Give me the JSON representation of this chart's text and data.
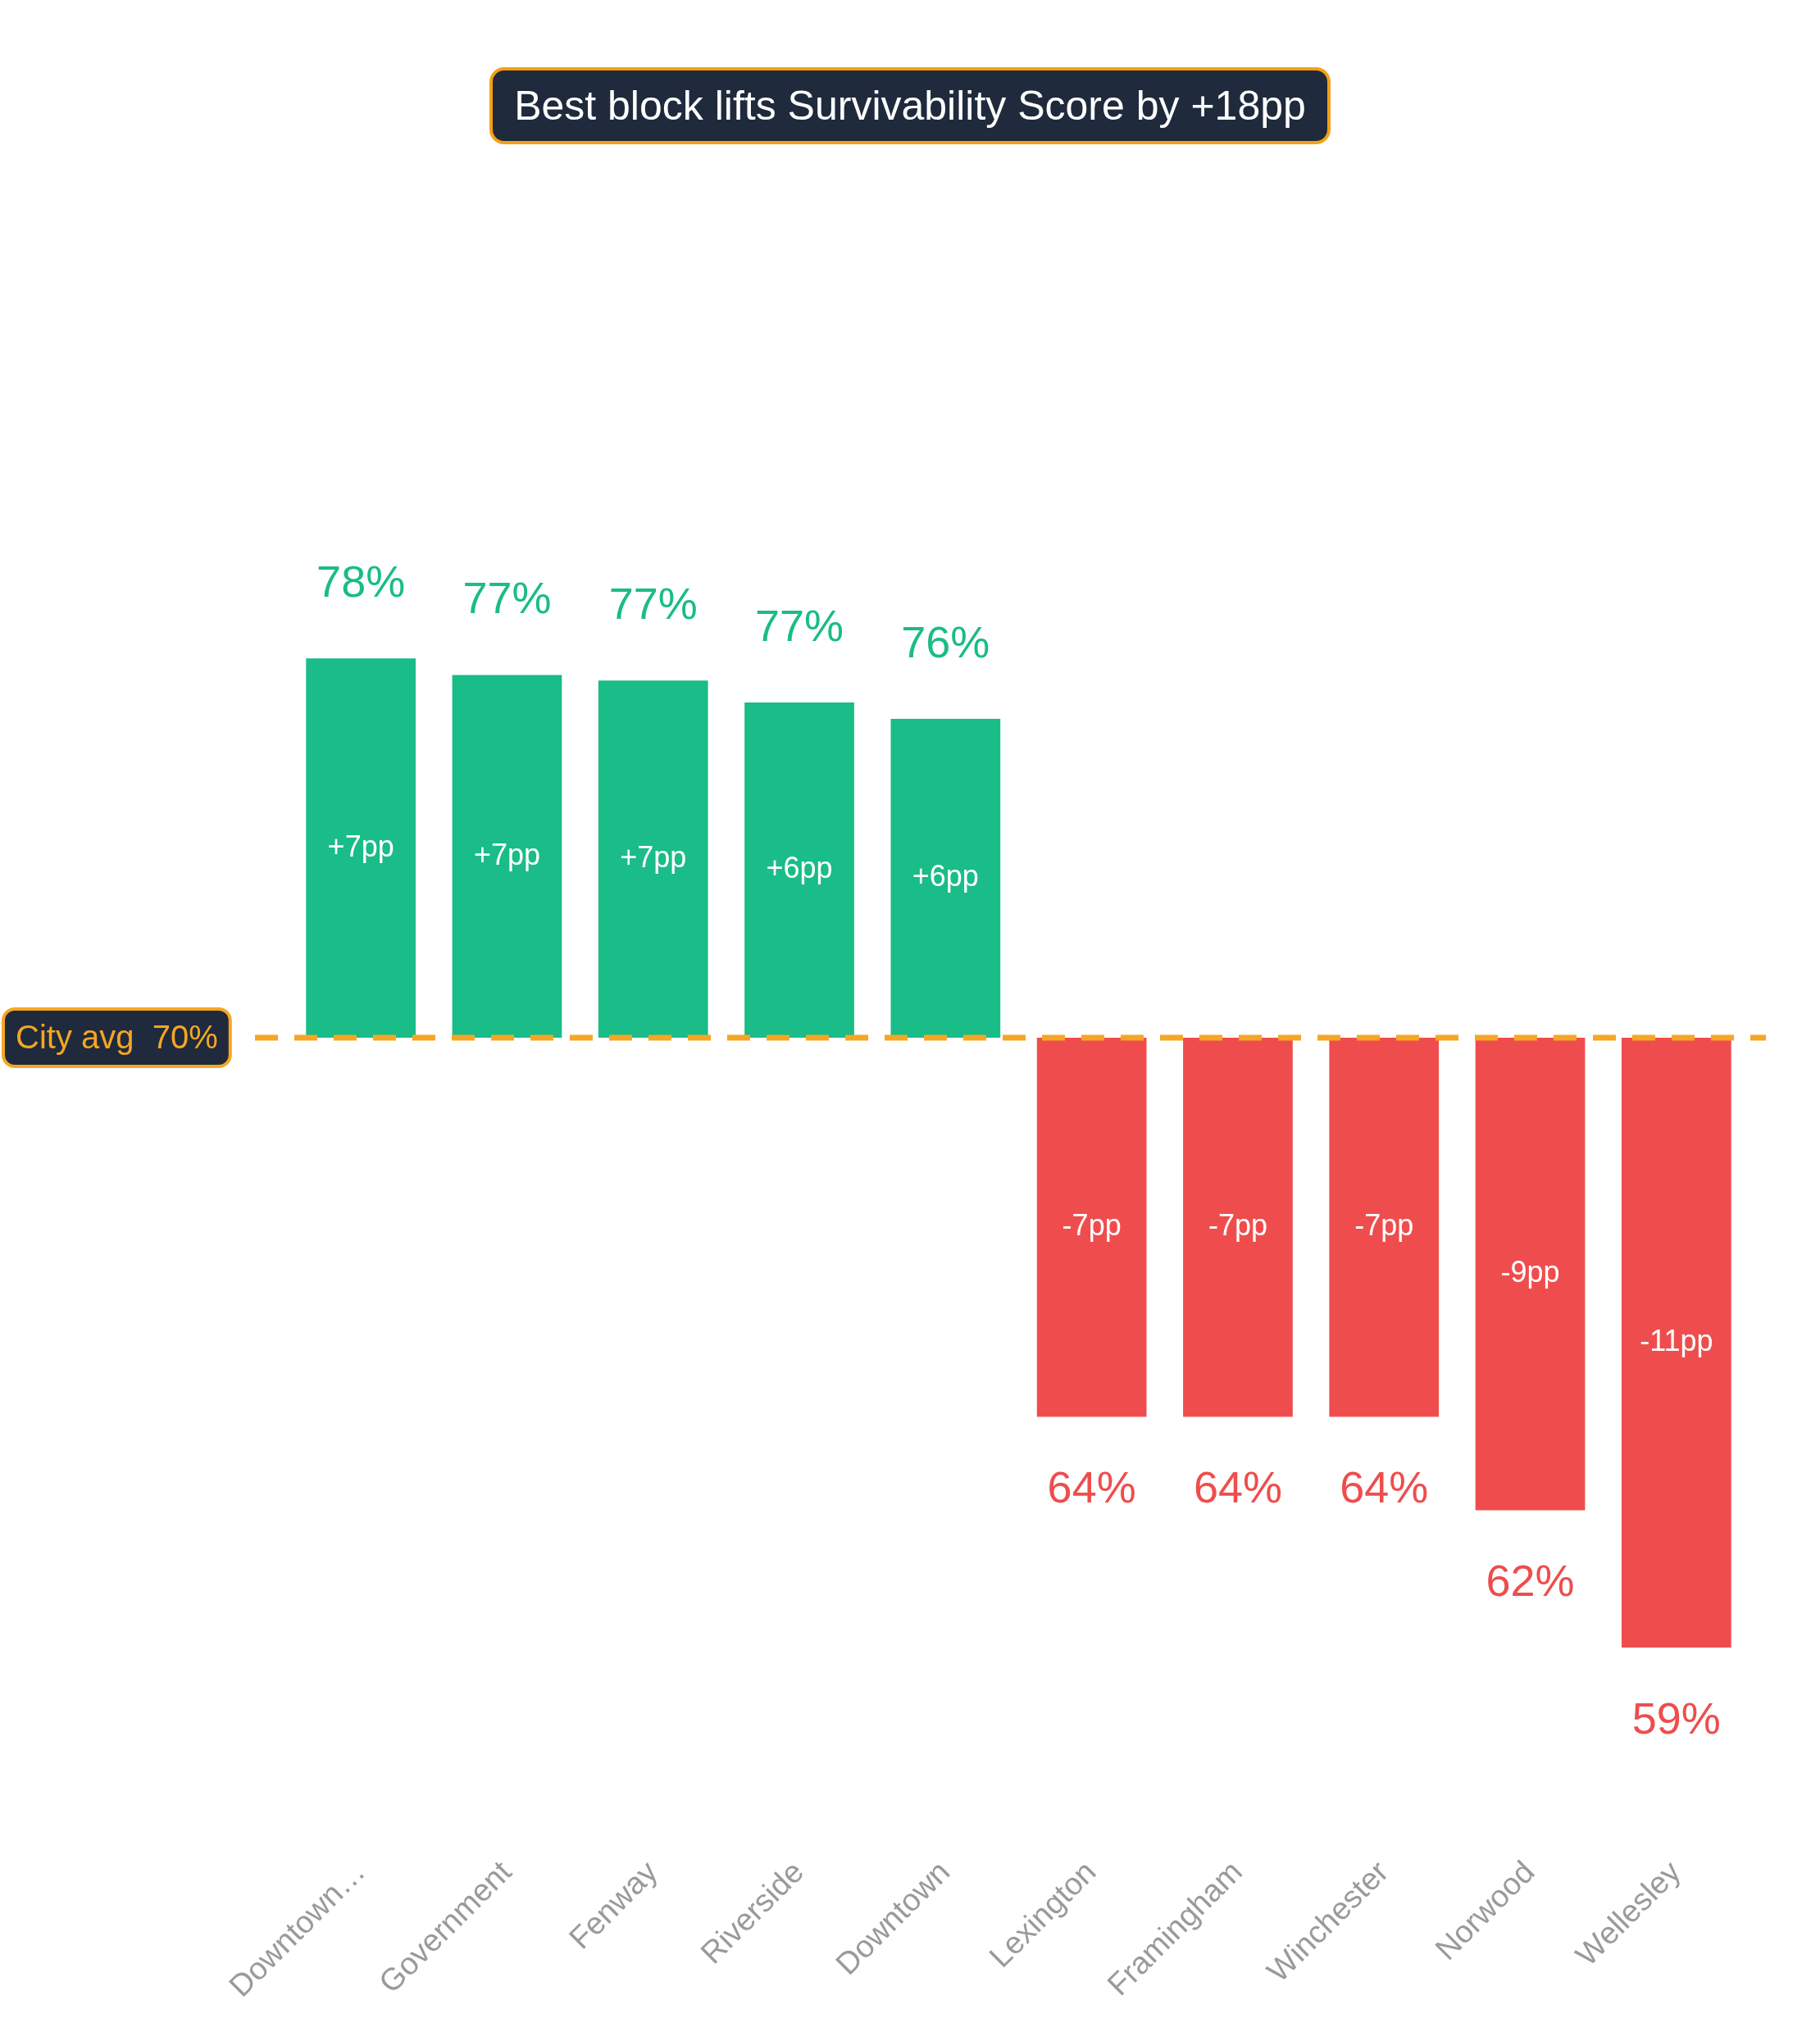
{
  "chart_data": {
    "type": "bar",
    "title": "Best block lifts Survivability Score by +18pp",
    "categories": [
      "Downtown…",
      "Government",
      "Fenway",
      "Riverside",
      "Downtown",
      "Lexington",
      "Framingham",
      "Winchester",
      "Norwood",
      "Wellesley"
    ],
    "values": [
      6.9,
      6.6,
      6.5,
      6.1,
      5.8,
      -6.9,
      -6.9,
      -6.9,
      -8.6,
      -11.1
    ],
    "colors": [
      "#1abc87",
      "#1abc87",
      "#1abc87",
      "#1abc87",
      "#1abc87",
      "#ef4d4d",
      "#ef4d4d",
      "#ef4d4d",
      "#ef4d4d",
      "#ef4d4d"
    ],
    "value_labels": [
      "+7pp",
      "+7pp",
      "+7pp",
      "+6pp",
      "+6pp",
      "-7pp",
      "-7pp",
      "-7pp",
      "-9pp",
      "-11pp"
    ],
    "ref_lines": [
      {
        "axis": "y",
        "value": 0,
        "label": "City avg  70%",
        "color": "#f5a623",
        "line_style": "dashed"
      }
    ],
    "annotations": [
      {
        "text": "78%",
        "x": "Downtown…",
        "y": 6.9
      },
      {
        "text": "77%",
        "x": "Government",
        "y": 6.6
      },
      {
        "text": "77%",
        "x": "Fenway",
        "y": 6.5
      },
      {
        "text": "77%",
        "x": "Riverside",
        "y": 6.1
      },
      {
        "text": "76%",
        "x": "Downtown",
        "y": 5.8
      },
      {
        "text": "64%",
        "x": "Lexington",
        "y": -6.9
      },
      {
        "text": "64%",
        "x": "Framingham",
        "y": -6.9
      },
      {
        "text": "64%",
        "x": "Winchester",
        "y": -6.9
      },
      {
        "text": "62%",
        "x": "Norwood",
        "y": -8.6
      },
      {
        "text": "59%",
        "x": "Wellesley",
        "y": -11.1
      }
    ],
    "grid": false,
    "legend": false
  }
}
